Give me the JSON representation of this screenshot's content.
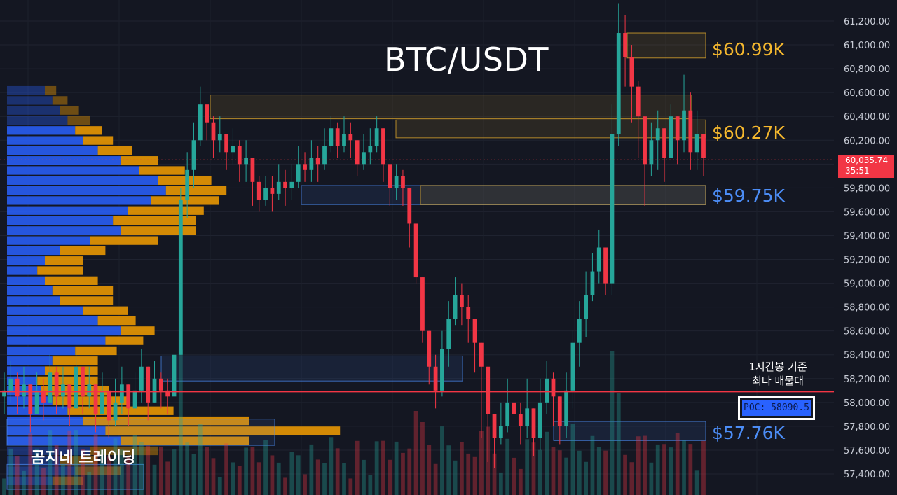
{
  "header": {
    "title": "BTC/USDT"
  },
  "levels": [
    {
      "label": "$60.99K",
      "price": 60990,
      "color": "#f5b82e"
    },
    {
      "label": "$60.27K",
      "price": 60270,
      "color": "#f5b82e"
    },
    {
      "label": "$59.75K",
      "price": 59750,
      "color": "#4c8df6"
    },
    {
      "label": "$57.76K",
      "price": 57760,
      "color": "#4c8df6"
    }
  ],
  "poc": {
    "note_line1": "1시간봉 기준",
    "note_line2": "최다 매물대",
    "label": "POC: 58090.5",
    "price": 58090.5
  },
  "current_price": {
    "value": "60,035.74",
    "countdown": "35:51",
    "price": 60035.74
  },
  "brand": "곰지네 트레이딩",
  "colors": {
    "up": "#26a69a",
    "down": "#f23645",
    "vp_up": "#2962ff",
    "vp_down": "#f59f00",
    "poc_line": "#f23645"
  },
  "chart_data": {
    "type": "candlestick",
    "title": "BTC/USDT",
    "y_axis": {
      "min": 57250,
      "max": 61450,
      "ticks": [
        57400,
        57600,
        57800,
        58000,
        58200,
        58400,
        58600,
        58800,
        59000,
        59200,
        59400,
        59600,
        59800,
        60000,
        60200,
        60400,
        60600,
        60800,
        61000,
        61200
      ],
      "tick_labels": [
        "57,400.00",
        "57,600.00",
        "57,800.00",
        "58,000.00",
        "58,200.00",
        "58,400.00",
        "58,600.00",
        "58,800.00",
        "59,000.00",
        "59,200.00",
        "59,400.00",
        "59,600.00",
        "59,800.00",
        "60,000.00",
        "60,200.00",
        "60,400.00",
        "60,600.00",
        "60,800.00",
        "61,000.00",
        "61,200.00"
      ]
    },
    "closes": [
      58100,
      58200,
      58050,
      58150,
      57900,
      58100,
      58000,
      58250,
      58050,
      58150,
      57950,
      58300,
      58050,
      58150,
      57900,
      58100,
      57850,
      58000,
      58150,
      57950,
      58100,
      58300,
      58000,
      58200,
      58100,
      58050,
      58400,
      59700,
      59950,
      60200,
      60500,
      60350,
      60200,
      60250,
      60100,
      60150,
      60000,
      60050,
      59850,
      59700,
      59800,
      59750,
      59850,
      59800,
      59850,
      60000,
      59950,
      60050,
      60000,
      60150,
      60300,
      60150,
      60250,
      60200,
      60000,
      60100,
      60150,
      60300,
      60000,
      59800,
      59900,
      59800,
      59500,
      59050,
      58600,
      58300,
      58100,
      58450,
      58700,
      58900,
      58800,
      58700,
      58500,
      58300,
      57900,
      57700,
      57800,
      58000,
      57900,
      57800,
      57950,
      57700,
      58000,
      58200,
      58050,
      57800,
      58100,
      58500,
      58700,
      58900,
      59100,
      59300,
      59000,
      60250,
      61100,
      60900,
      60650,
      60400,
      60000,
      60200,
      60300,
      60050,
      60400,
      60200,
      60450,
      60100,
      60250,
      60050
    ],
    "highs": [
      58250,
      58350,
      58250,
      58300,
      58150,
      58250,
      58200,
      58400,
      58300,
      58300,
      58150,
      58450,
      58250,
      58300,
      58100,
      58250,
      58050,
      58200,
      58300,
      58100,
      58250,
      58450,
      58200,
      58350,
      58250,
      58200,
      58550,
      59800,
      60100,
      60350,
      60650,
      60500,
      60400,
      60400,
      60250,
      60300,
      60200,
      60200,
      60050,
      59900,
      59900,
      59900,
      60000,
      59950,
      60000,
      60150,
      60100,
      60200,
      60150,
      60300,
      60400,
      60350,
      60400,
      60350,
      60200,
      60250,
      60300,
      60400,
      60300,
      60000,
      60000,
      59950,
      59700,
      59500,
      58800,
      58600,
      58400,
      58600,
      58850,
      59050,
      59000,
      58900,
      58700,
      58500,
      58200,
      57900,
      58000,
      58200,
      58100,
      58000,
      58200,
      57950,
      58200,
      58350,
      58250,
      58050,
      58250,
      58600,
      58850,
      59100,
      59250,
      59450,
      59300,
      60500,
      61350,
      61250,
      61000,
      60700,
      60400,
      60350,
      60450,
      60300,
      60500,
      60400,
      60750,
      60600,
      60450,
      60250
    ],
    "lows": [
      57900,
      58000,
      57900,
      57950,
      57750,
      57950,
      57850,
      58000,
      57900,
      57950,
      57800,
      58050,
      57900,
      57950,
      57750,
      57900,
      57700,
      57800,
      57900,
      57800,
      57900,
      58000,
      57850,
      58000,
      57950,
      57900,
      58000,
      58400,
      59550,
      59800,
      60150,
      60200,
      60050,
      60100,
      59950,
      60000,
      59850,
      59850,
      59650,
      59600,
      59650,
      59600,
      59700,
      59650,
      59700,
      59800,
      59850,
      59850,
      59850,
      59950,
      60100,
      60050,
      60100,
      60050,
      59900,
      59950,
      60000,
      60100,
      59850,
      59650,
      59700,
      59650,
      59300,
      59000,
      58500,
      58150,
      57950,
      58050,
      58300,
      58650,
      58650,
      58500,
      58250,
      57700,
      57500,
      57450,
      57650,
      57750,
      57750,
      57650,
      57700,
      57550,
      57600,
      57900,
      57800,
      57650,
      57700,
      57950,
      58300,
      58550,
      58850,
      59000,
      58900,
      58900,
      60150,
      60650,
      60350,
      60050,
      59650,
      59900,
      59950,
      59850,
      60050,
      60000,
      60100,
      59950,
      59950,
      59900
    ],
    "volume_profile": {
      "price_step": 84,
      "start_price": 57300,
      "buy": [
        12,
        18,
        14,
        22,
        30,
        26,
        20,
        16,
        12,
        9,
        8,
        10,
        12,
        18,
        26,
        30,
        24,
        20,
        14,
        12,
        10,
        8,
        10,
        14,
        22,
        30,
        28,
        32,
        38,
        42,
        40,
        35,
        30,
        24,
        20,
        18,
        16,
        14,
        12,
        10
      ],
      "sell": [
        8,
        12,
        10,
        18,
        34,
        62,
        44,
        28,
        20,
        18,
        16,
        14,
        12,
        11,
        10,
        9,
        10,
        12,
        14,
        16,
        14,
        12,
        10,
        12,
        18,
        20,
        22,
        20,
        18,
        16,
        14,
        12,
        10,
        9,
        8,
        7,
        6,
        5,
        4,
        3
      ]
    }
  }
}
